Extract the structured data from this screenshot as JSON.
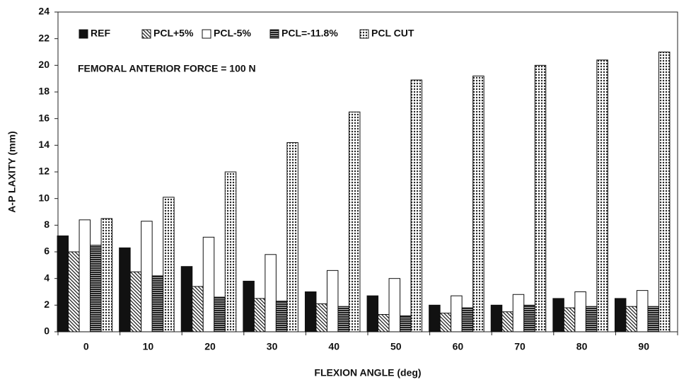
{
  "chart_data": {
    "type": "bar",
    "annotation": "FEMORAL ANTERIOR FORCE = 100 N",
    "x_label": "FLEXION ANGLE (deg)",
    "y_label": "A-P LAXITY (mm)",
    "categories": [
      "0",
      "10",
      "20",
      "30",
      "40",
      "50",
      "60",
      "70",
      "80",
      "90"
    ],
    "series": [
      {
        "name": "REF",
        "color": "#111111",
        "pattern": "solid",
        "values": [
          7.2,
          6.3,
          4.9,
          3.8,
          3.0,
          2.7,
          2.0,
          2.0,
          2.5,
          2.5
        ]
      },
      {
        "name": "PCL+5%",
        "color": "#111111",
        "pattern": "diagonal",
        "values": [
          6.0,
          4.5,
          3.4,
          2.5,
          2.1,
          1.3,
          1.4,
          1.5,
          1.8,
          1.9
        ]
      },
      {
        "name": "PCL-5%",
        "color": "#111111",
        "pattern": "none",
        "values": [
          8.4,
          8.3,
          7.1,
          5.8,
          4.6,
          4.0,
          2.7,
          2.8,
          3.0,
          3.1
        ]
      },
      {
        "name": "PCL=-11.8%",
        "color": "#111111",
        "pattern": "horizontal",
        "values": [
          6.5,
          4.2,
          2.6,
          2.3,
          1.9,
          1.2,
          1.8,
          2.0,
          1.9,
          1.9
        ]
      },
      {
        "name": "PCL CUT",
        "color": "#111111",
        "pattern": "dots",
        "values": [
          8.5,
          10.1,
          12.0,
          14.2,
          16.5,
          18.9,
          19.2,
          20.0,
          20.4,
          21.0
        ]
      }
    ],
    "ylim": [
      0,
      24
    ],
    "yticks": [
      0,
      2,
      4,
      6,
      8,
      10,
      12,
      14,
      16,
      18,
      20,
      22,
      24
    ],
    "legend": "top"
  }
}
